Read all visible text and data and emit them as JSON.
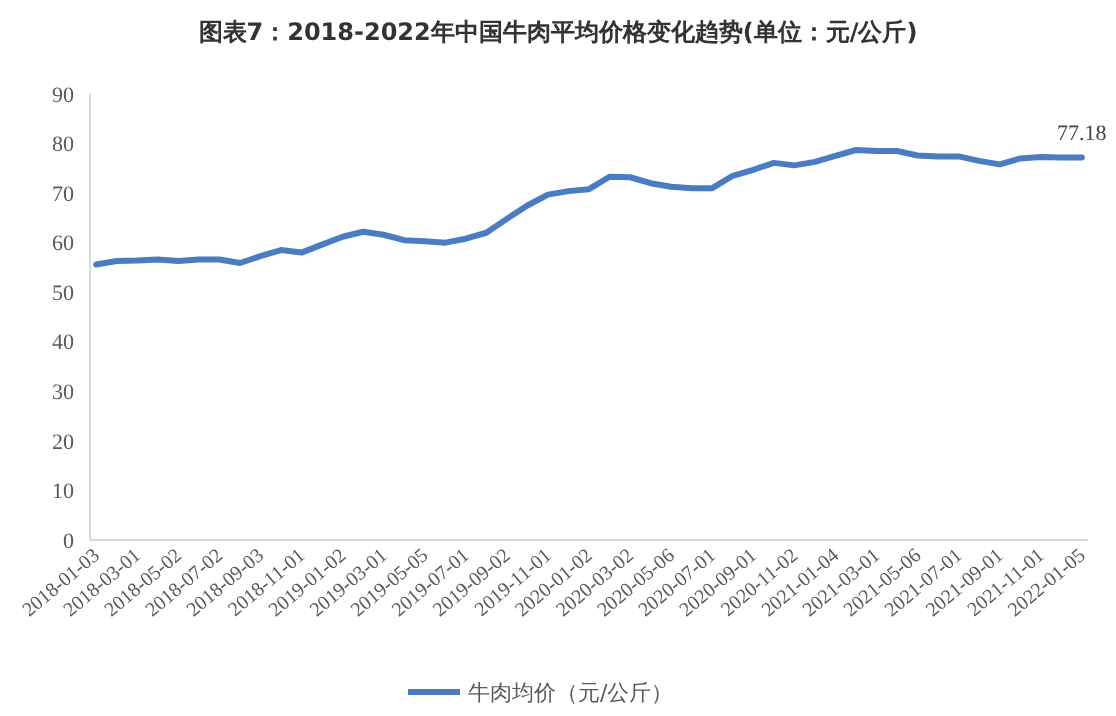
{
  "chart_data": {
    "type": "line",
    "title": "图表7：2018-2022年中国牛肉平均价格变化趋势(单位：元/公斤)",
    "categories": [
      "2018-01-03",
      null,
      "2018-03-01",
      null,
      "2018-05-02",
      null,
      "2018-07-02",
      null,
      "2018-09-03",
      null,
      "2018-11-01",
      null,
      "2019-01-02",
      null,
      "2019-03-01",
      null,
      "2019-05-05",
      null,
      "2019-07-01",
      null,
      "2019-09-02",
      null,
      "2019-11-01",
      null,
      "2020-01-02",
      null,
      "2020-03-02",
      null,
      "2020-05-06",
      null,
      "2020-07-01",
      null,
      "2020-09-01",
      null,
      "2020-11-02",
      null,
      "2021-01-04",
      null,
      "2021-03-01",
      null,
      "2021-05-06",
      null,
      "2021-07-01",
      null,
      "2021-09-01",
      null,
      "2021-11-01",
      null,
      "2022-01-05"
    ],
    "series": [
      {
        "name": "牛肉均价（元/公斤）",
        "color": "#4a7cc4",
        "values": [
          55.6,
          56.3,
          56.4,
          56.6,
          56.3,
          56.6,
          56.6,
          55.9,
          57.3,
          58.5,
          58.0,
          59.6,
          61.2,
          62.2,
          61.6,
          60.5,
          60.3,
          60.0,
          60.8,
          62.0,
          64.8,
          67.5,
          69.7,
          70.4,
          70.8,
          73.3,
          73.2,
          72.0,
          71.3,
          71.0,
          71.0,
          73.5,
          74.7,
          76.1,
          75.6,
          76.3,
          77.5,
          78.7,
          78.5,
          78.5,
          77.6,
          77.4,
          77.4,
          76.5,
          75.8,
          77.0,
          77.3,
          77.2,
          77.18
        ],
        "value_labels": [
          null,
          null,
          null,
          null,
          null,
          null,
          null,
          null,
          null,
          null,
          null,
          null,
          null,
          null,
          null,
          null,
          null,
          null,
          null,
          null,
          null,
          null,
          null,
          null,
          null,
          null,
          null,
          null,
          null,
          null,
          null,
          null,
          null,
          null,
          null,
          null,
          null,
          null,
          null,
          null,
          null,
          null,
          null,
          null,
          null,
          null,
          null,
          null,
          "77.18"
        ]
      }
    ],
    "ylim": [
      0,
      90
    ],
    "yticks": [
      0,
      10,
      20,
      30,
      40,
      50,
      60,
      70,
      80,
      90
    ],
    "grid": false,
    "legend": "bottom",
    "line_style": "solid",
    "marker": "none"
  }
}
